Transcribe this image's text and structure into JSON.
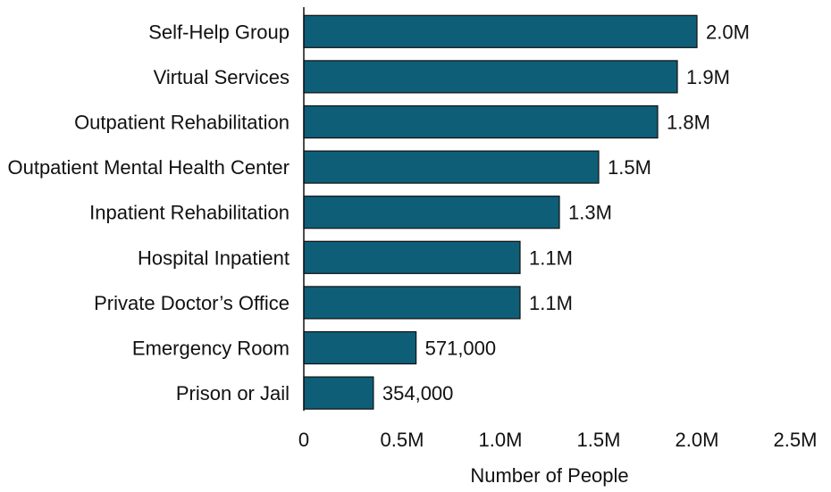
{
  "chart_data": {
    "type": "bar",
    "orientation": "horizontal",
    "categories": [
      "Self-Help Group",
      "Virtual Services",
      "Outpatient Rehabilitation",
      "Outpatient Mental Health Center",
      "Inpatient Rehabilitation",
      "Hospital Inpatient",
      "Private Doctor’s Office",
      "Emergency Room",
      "Prison or Jail"
    ],
    "values": [
      2000000,
      1900000,
      1800000,
      1500000,
      1300000,
      1100000,
      1100000,
      571000,
      354000
    ],
    "data_labels": [
      "2.0M",
      "1.9M",
      "1.8M",
      "1.5M",
      "1.3M",
      "1.1M",
      "1.1M",
      "571,000",
      "354,000"
    ],
    "xlabel": "Number of People",
    "ylabel": "",
    "xlim": [
      0,
      2500000
    ],
    "x_ticks": [
      0,
      500000,
      1000000,
      1500000,
      2000000,
      2500000
    ],
    "x_tick_labels": [
      "0",
      "0.5M",
      "1.0M",
      "1.5M",
      "2.0M",
      "2.5M"
    ],
    "bar_color": "#0e5e78",
    "grid": false,
    "legend": "none"
  }
}
